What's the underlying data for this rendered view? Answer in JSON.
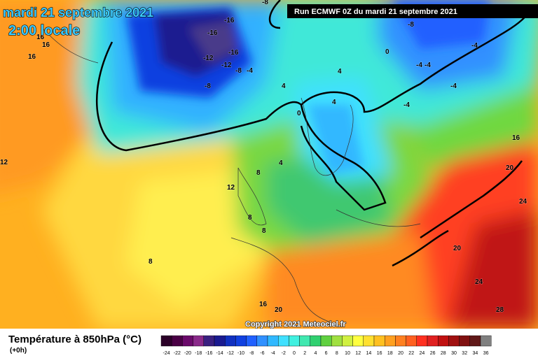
{
  "header": {
    "date": "mardi 21 septembre 2021",
    "time": "2:00 locale",
    "run": "Run ECMWF 0Z du mardi 21 septembre 2021"
  },
  "footer": {
    "title": "Température à 850hPa (°C)",
    "lead": "(+0h)",
    "copyright": "Copyright 2021 Meteociel.fr"
  },
  "scale": {
    "ticks": [
      -24,
      -22,
      -20,
      -18,
      -16,
      -14,
      -12,
      -10,
      -8,
      -6,
      -4,
      -2,
      0,
      2,
      4,
      6,
      8,
      10,
      12,
      14,
      16,
      18,
      20,
      22,
      24,
      26,
      28,
      30,
      32,
      34,
      36
    ],
    "colors": [
      "#2b0028",
      "#4a0045",
      "#6b0a6b",
      "#8a2a8a",
      "#3a2080",
      "#1a1a90",
      "#1030c0",
      "#1040e0",
      "#2060ff",
      "#3090ff",
      "#30b8ff",
      "#40e0ff",
      "#40f0e0",
      "#40e8b0",
      "#30d070",
      "#60d040",
      "#a0e040",
      "#d0f040",
      "#ffff40",
      "#ffe030",
      "#ffc020",
      "#ffa020",
      "#ff8020",
      "#ff6020",
      "#ff3020",
      "#e02020",
      "#c01010",
      "#a01010",
      "#801010",
      "#601818",
      "#808080"
    ]
  },
  "contour_labels": [
    "-8",
    "-16",
    "-16",
    "-16",
    "-12",
    "-12",
    "-8",
    "-4",
    "-8",
    "16",
    "16",
    "16",
    "12",
    "4",
    "4",
    "0",
    "-4",
    "-4",
    "-4",
    "-4",
    "-4",
    "-8",
    "0",
    "4",
    "4",
    "8",
    "12",
    "8",
    "8",
    "8",
    "16",
    "20",
    "24",
    "20",
    "24",
    "28",
    "16",
    "20"
  ]
}
